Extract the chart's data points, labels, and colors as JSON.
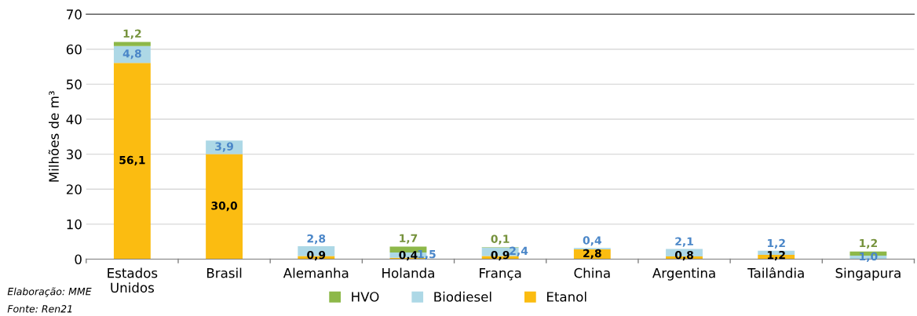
{
  "chart_data": {
    "type": "bar",
    "stacked": true,
    "ylabel": "Milhões de m³",
    "categories": [
      "Estados\nUnidos",
      "Brasil",
      "Alemanha",
      "Holanda",
      "França",
      "China",
      "Argentina",
      "Tailândia",
      "Singapura"
    ],
    "series": [
      {
        "name": "Etanol",
        "color": "#fbbc11",
        "values": [
          56.1,
          30.0,
          0.9,
          0.4,
          0.9,
          2.8,
          0.8,
          1.2,
          null
        ],
        "value_labels": [
          "56,1",
          "30,0",
          "0,9",
          "0,4",
          "0,9",
          "2,8",
          "0,8",
          "1,2",
          null
        ]
      },
      {
        "name": "Biodiesel",
        "color": "#add8e6",
        "values": [
          4.8,
          3.9,
          2.8,
          1.5,
          2.4,
          0.4,
          2.1,
          1.2,
          1.0
        ],
        "value_labels": [
          "4,8",
          "3,9",
          "2,8",
          "1,5",
          "2,4",
          "0,4",
          "2,1",
          "1,2",
          "1,0"
        ]
      },
      {
        "name": "HVO",
        "color": "#8db849",
        "values": [
          1.2,
          null,
          null,
          1.7,
          0.1,
          null,
          null,
          null,
          1.2
        ],
        "value_labels": [
          "1,2",
          null,
          null,
          "1,7",
          "0,1",
          null,
          null,
          null,
          "1,2"
        ]
      }
    ],
    "ylim": [
      0,
      70
    ],
    "yticks": [
      0,
      10,
      20,
      30,
      40,
      50,
      60,
      70
    ],
    "grid": "y",
    "legend": "bottom",
    "annotations": [
      "Elaboração: MME",
      "Fonte: Ren21"
    ]
  }
}
